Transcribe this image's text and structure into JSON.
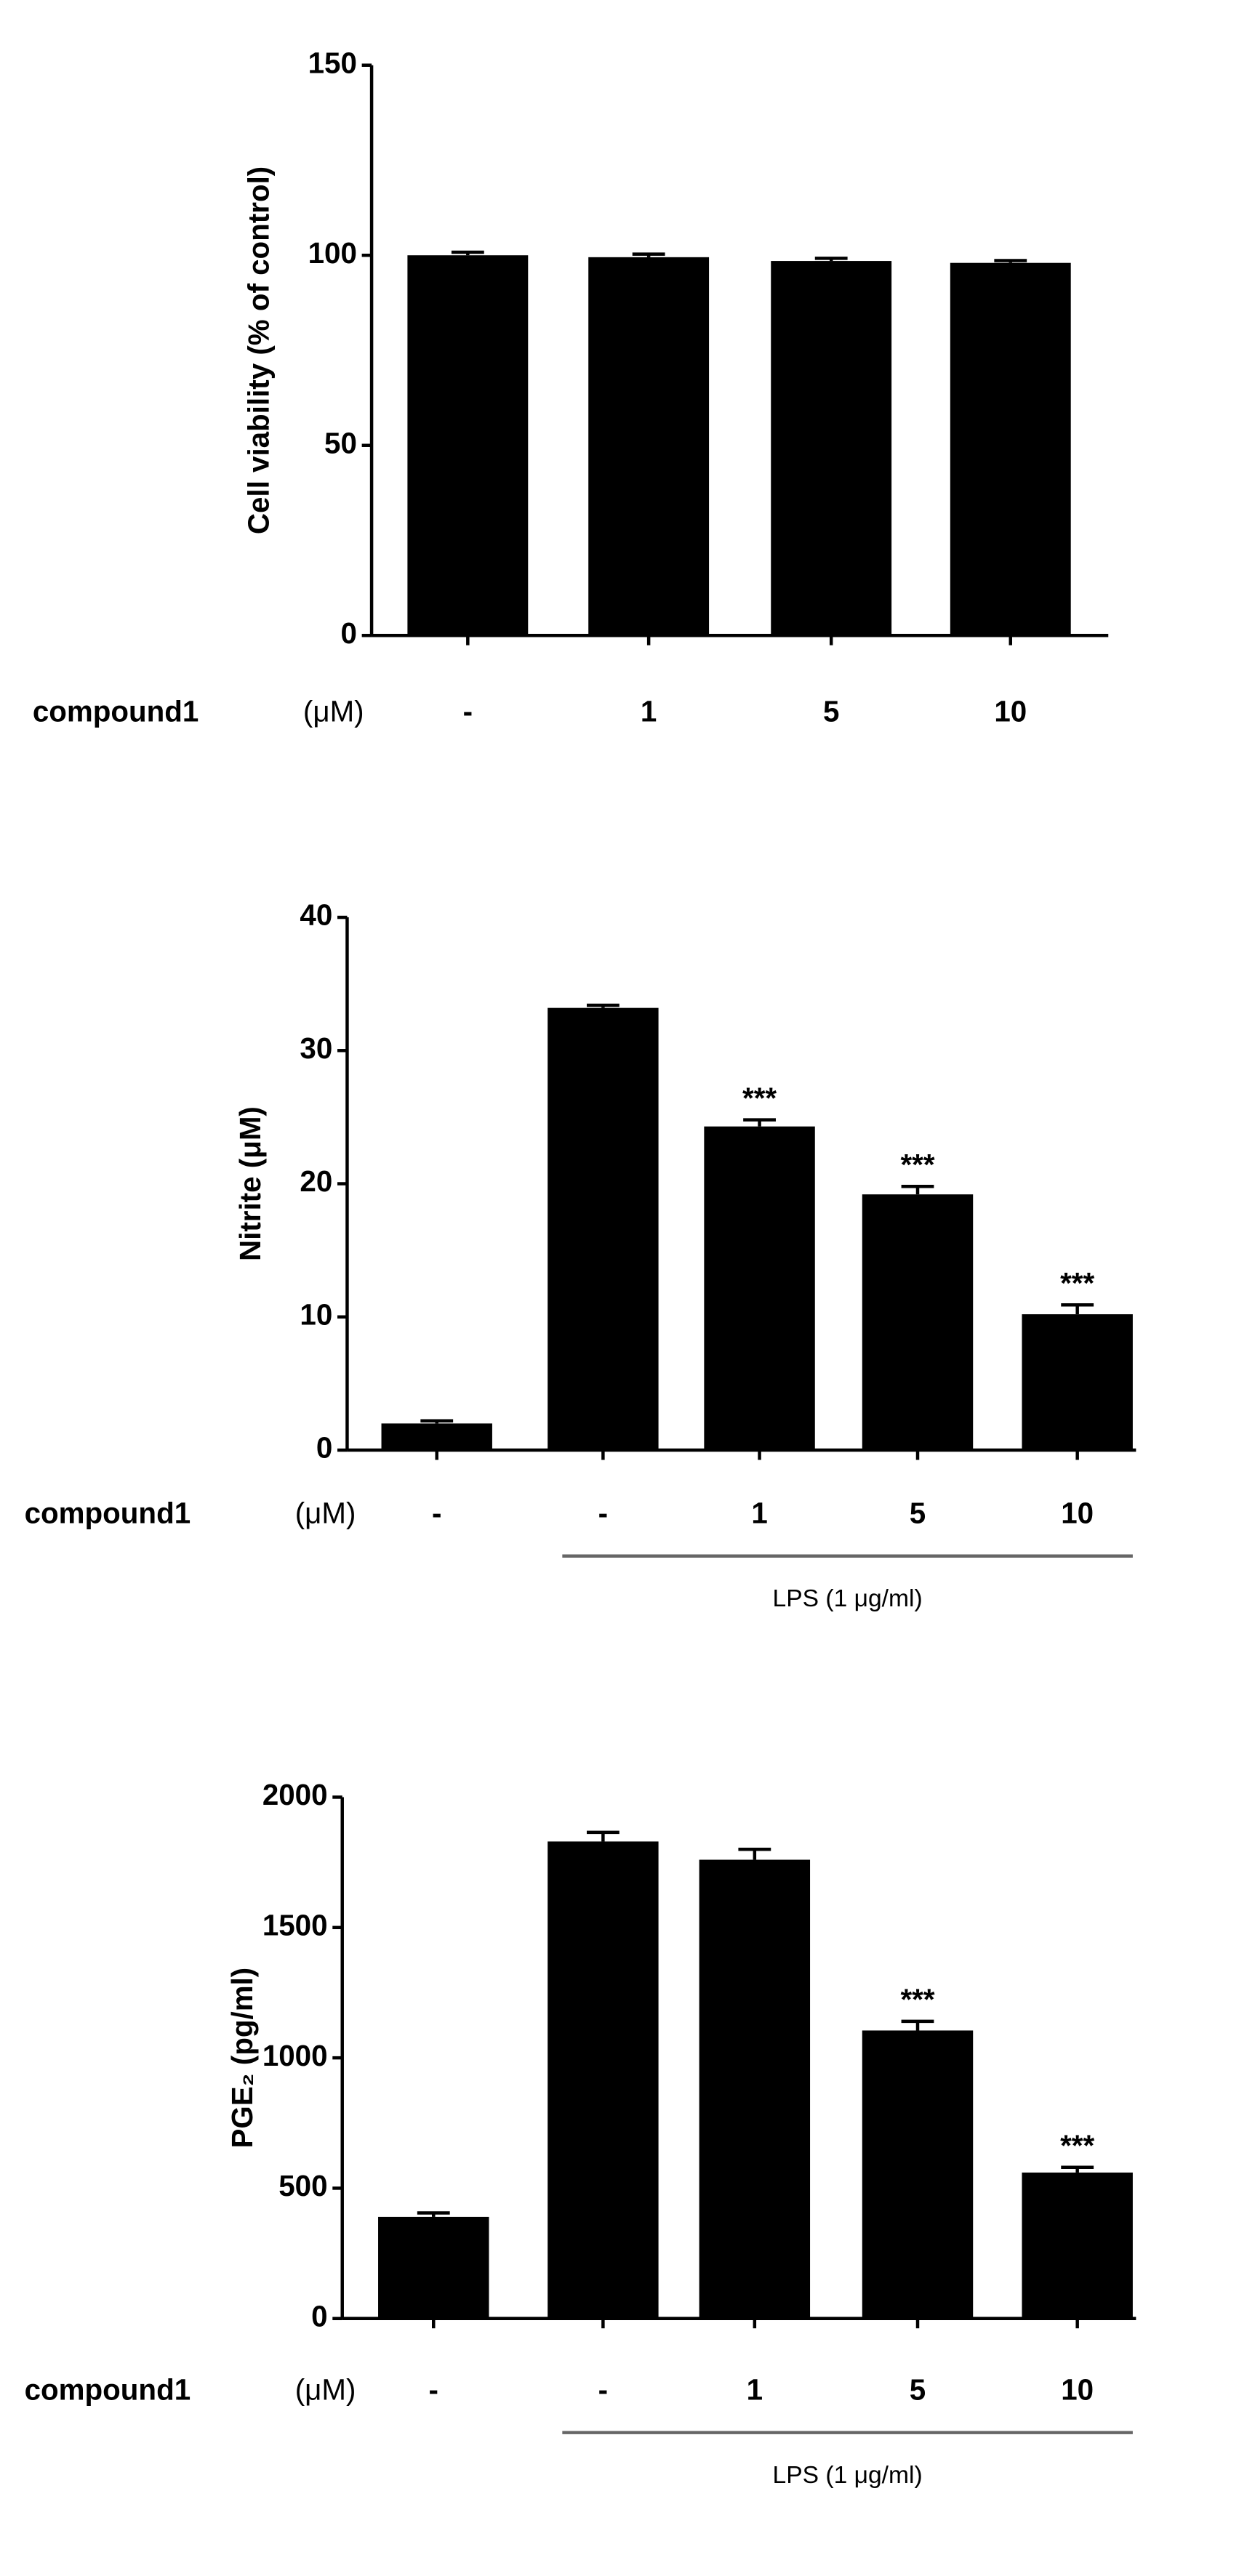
{
  "chart_data": [
    {
      "type": "bar",
      "y_label": "Cell viability (%  of control)",
      "x_label": "compound1",
      "x_unit": "(μM)",
      "categories": [
        "-",
        "1",
        "5",
        "10"
      ],
      "values": [
        100,
        99.5,
        98.5,
        98
      ],
      "errors": [
        0.8,
        0.8,
        0.7,
        0.6
      ],
      "annotations": [
        null,
        null,
        null,
        null
      ],
      "color": "#000000",
      "ylim": [
        0,
        150
      ],
      "yticks": [
        0,
        50,
        100,
        150
      ]
    },
    {
      "type": "bar",
      "y_label": "Nitrite (μM)",
      "x_label": "compound1",
      "x_unit": "(μM)",
      "categories": [
        "-",
        "-",
        "1",
        "5",
        "10"
      ],
      "values": [
        2,
        33.2,
        24.3,
        19.2,
        10.2
      ],
      "errors": [
        0.2,
        0.2,
        0.5,
        0.6,
        0.7
      ],
      "annotations": [
        null,
        null,
        "***",
        "***",
        "***"
      ],
      "group_label": "LPS (1 μg/ml)",
      "color": "#000000",
      "ylim": [
        0,
        40
      ],
      "yticks": [
        0,
        10,
        20,
        30,
        40
      ]
    },
    {
      "type": "bar",
      "y_label": "PGE₂ (pg/ml)",
      "x_label": "compound1",
      "x_unit": "(μM)",
      "categories": [
        "-",
        "-",
        "1",
        "5",
        "10"
      ],
      "values": [
        390,
        1830,
        1760,
        1105,
        560
      ],
      "errors": [
        15,
        35,
        40,
        35,
        20
      ],
      "annotations": [
        null,
        null,
        null,
        "***",
        "***"
      ],
      "group_label": "LPS (1 μg/ml)",
      "color": "#000000",
      "ylim": [
        0,
        2000
      ],
      "yticks": [
        0,
        500,
        1000,
        1500,
        2000
      ]
    }
  ]
}
